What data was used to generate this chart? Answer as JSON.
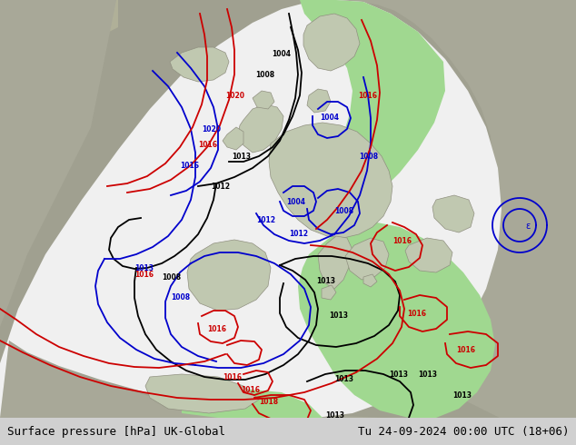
{
  "title_left": "Surface pressure [hPa] UK-Global",
  "title_right": "Tu 24-09-2024 00:00 UTC (18+06)",
  "bg_color": "#a0a090",
  "white_region_color": "#f0f0f0",
  "green_region_color": "#a0d890",
  "land_outside_color": "#b8b8a0",
  "land_inside_color": "#c0c8b0",
  "footer_bg": "#d0d0d0",
  "footer_text_color": "#000000",
  "contour_black_color": "#000000",
  "contour_blue_color": "#0000cc",
  "contour_red_color": "#cc0000",
  "footer_fontsize": 9
}
